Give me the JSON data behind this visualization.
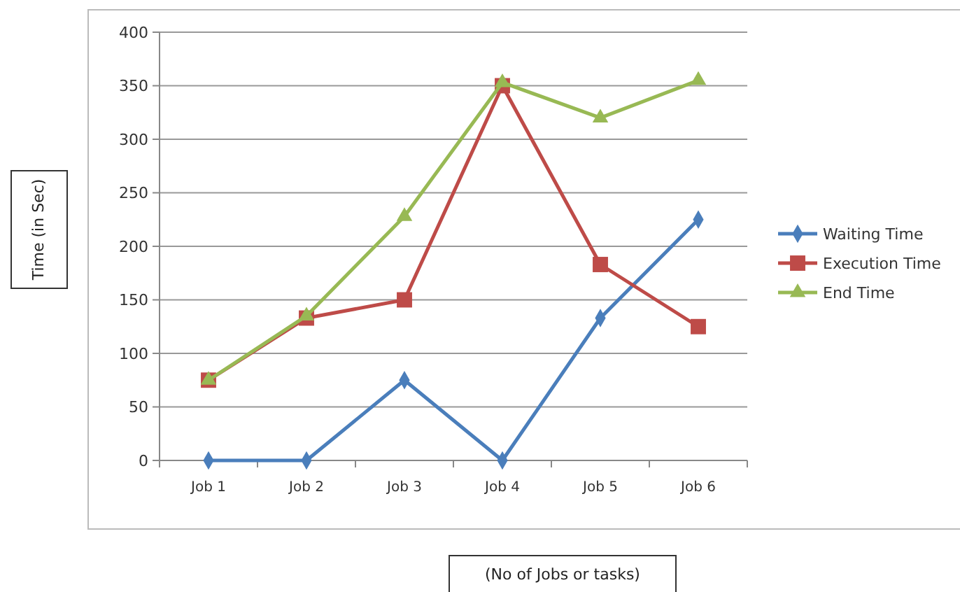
{
  "chart_data": {
    "type": "line",
    "xlabel": "(No of Jobs or tasks)",
    "ylabel": "Time (in Sec)",
    "categories": [
      "Job 1",
      "Job 2",
      "Job 3",
      "Job 4",
      "Job 5",
      "Job 6"
    ],
    "series": [
      {
        "name": "Waiting Time",
        "color": "#4a7ebb",
        "marker": "diamond",
        "values": [
          0,
          0,
          75,
          0,
          133,
          225
        ]
      },
      {
        "name": "Execution Time",
        "color": "#be4b48",
        "marker": "square",
        "values": [
          75,
          133,
          150,
          350,
          183,
          125
        ]
      },
      {
        "name": "End Time",
        "color": "#98b954",
        "marker": "triangle",
        "values": [
          75,
          135,
          228,
          353,
          320,
          355
        ]
      }
    ],
    "ylim": [
      0,
      400
    ],
    "yticks": [
      0,
      50,
      100,
      150,
      200,
      250,
      300,
      350,
      400
    ],
    "grid": "y",
    "legend": "right"
  }
}
